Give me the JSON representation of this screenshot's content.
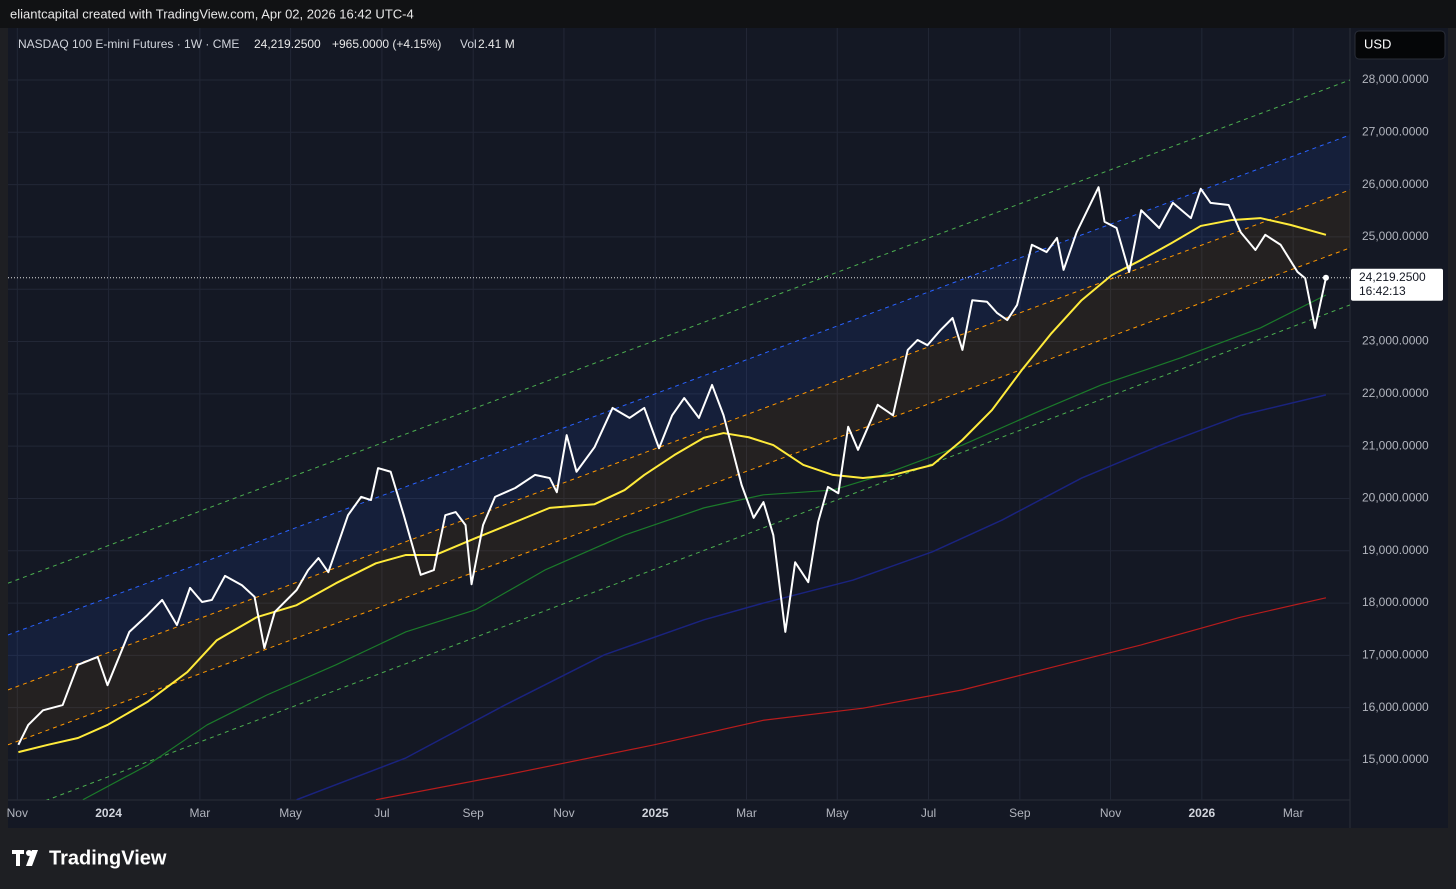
{
  "header": {
    "attribution": "eliantcapital created with TradingView.com, Apr 02, 2026 16:42 UTC-4",
    "brand": "TradingView"
  },
  "chart_data": {
    "type": "line",
    "title": "NASDAQ 100 E-mini Futures · 1W · CME",
    "last_price": {
      "value": 24219.25,
      "label": "24,219.2500"
    },
    "change": "+965.0000 (+4.15%)",
    "volume_label": "Vol",
    "volume": "2.41 M",
    "clock": "16:42:13",
    "currency": "USD",
    "grid": true,
    "xlim": [
      2023.816,
      2026.271
    ],
    "xticks": [
      {
        "value": 2023.833,
        "label": "Nov"
      },
      {
        "value": 2024.0,
        "label": "2024"
      },
      {
        "value": 2024.167,
        "label": "Mar"
      },
      {
        "value": 2024.333,
        "label": "May"
      },
      {
        "value": 2024.5,
        "label": "Jul"
      },
      {
        "value": 2024.667,
        "label": "Sep"
      },
      {
        "value": 2024.833,
        "label": "Nov"
      },
      {
        "value": 2025.0,
        "label": "2025"
      },
      {
        "value": 2025.167,
        "label": "Mar"
      },
      {
        "value": 2025.333,
        "label": "May"
      },
      {
        "value": 2025.5,
        "label": "Jul"
      },
      {
        "value": 2025.667,
        "label": "Sep"
      },
      {
        "value": 2025.833,
        "label": "Nov"
      },
      {
        "value": 2026.0,
        "label": "2026"
      },
      {
        "value": 2026.167,
        "label": "Mar"
      }
    ],
    "ylim": [
      14235,
      28994
    ],
    "yticks": [
      {
        "value": 15000,
        "label": "15,000.0000"
      },
      {
        "value": 16000,
        "label": "16,000.0000"
      },
      {
        "value": 17000,
        "label": "17,000.0000"
      },
      {
        "value": 18000,
        "label": "18,000.0000"
      },
      {
        "value": 19000,
        "label": "19,000.0000"
      },
      {
        "value": 20000,
        "label": "20,000.0000"
      },
      {
        "value": 21000,
        "label": "21,000.0000"
      },
      {
        "value": 22000,
        "label": "22,000.0000"
      },
      {
        "value": 23000,
        "label": "23,000.0000"
      },
      {
        "value": 24000,
        "label": "24,000.0000"
      },
      {
        "value": 25000,
        "label": "25,000.0000"
      },
      {
        "value": 26000,
        "label": "26,000.0000"
      },
      {
        "value": 27000,
        "label": "27,000.0000"
      },
      {
        "value": 28000,
        "label": "28,000.0000"
      }
    ],
    "series": [
      {
        "color": "#4caf50",
        "dash": true,
        "width": 1,
        "x": [
          2023.816,
          2026.271
        ],
        "values": [
          18380,
          28000
        ]
      },
      {
        "color": "#2962ff",
        "dash": true,
        "width": 1,
        "fill": "rgba(41,98,255,0.10)",
        "x": [
          2023.816,
          2026.271
        ],
        "values": [
          17390,
          26950
        ]
      },
      {
        "color": "#ff9800",
        "dash": true,
        "width": 1,
        "fill": "rgba(255,152,0,0.07)",
        "x": [
          2023.816,
          2026.271
        ],
        "values": [
          16340,
          25900
        ]
      },
      {
        "color": "#ff9800",
        "dash": true,
        "width": 1,
        "x": [
          2023.816,
          2026.271
        ],
        "values": [
          15290,
          24790
        ]
      },
      {
        "color": "#4caf50",
        "dash": true,
        "width": 1,
        "x": [
          2023.816,
          2026.271
        ],
        "values": [
          13950,
          23700
        ]
      },
      {
        "color": "#b71c1c",
        "width": 1.2,
        "x": [
          2024.489,
          2024.725,
          2024.998,
          2025.198,
          2025.38,
          2025.562,
          2025.744,
          2025.889,
          2026.071,
          2026.227
        ],
        "values": [
          14240,
          14710,
          15290,
          15760,
          15990,
          16340,
          16820,
          17200,
          17730,
          18100
        ]
      },
      {
        "color": "#1a237e",
        "width": 1.5,
        "x": [
          2024.344,
          2024.544,
          2024.725,
          2024.907,
          2025.089,
          2025.198,
          2025.362,
          2025.507,
          2025.635,
          2025.78,
          2025.925,
          2026.071,
          2026.227
        ],
        "values": [
          14240,
          15040,
          16050,
          17010,
          17680,
          18000,
          18440,
          18980,
          19590,
          20390,
          21020,
          21590,
          21980
        ]
      },
      {
        "color": "#1b7a2a",
        "width": 1.2,
        "x": [
          2023.953,
          2024.071,
          2024.18,
          2024.289,
          2024.416,
          2024.544,
          2024.671,
          2024.798,
          2024.944,
          2025.089,
          2025.198,
          2025.325,
          2025.416,
          2025.562,
          2025.707,
          2025.816,
          2025.962,
          2026.107,
          2026.227
        ],
        "values": [
          14240,
          14900,
          15670,
          16240,
          16820,
          17450,
          17870,
          18630,
          19300,
          19820,
          20070,
          20160,
          20450,
          21020,
          21690,
          22170,
          22690,
          23260,
          23890
        ]
      },
      {
        "color": "#ffeb3b",
        "width": 2,
        "x": [
          2023.835,
          2023.889,
          2023.944,
          2023.998,
          2024.071,
          2024.144,
          2024.198,
          2024.271,
          2024.344,
          2024.416,
          2024.489,
          2024.544,
          2024.598,
          2024.671,
          2024.744,
          2024.807,
          2024.889,
          2024.944,
          2024.98,
          2025.035,
          2025.089,
          2025.125,
          2025.171,
          2025.216,
          2025.271,
          2025.325,
          2025.38,
          2025.435,
          2025.507,
          2025.562,
          2025.616,
          2025.671,
          2025.725,
          2025.78,
          2025.835,
          2025.889,
          2025.944,
          2025.998,
          2026.053,
          2026.107,
          2026.162,
          2026.227
        ],
        "values": [
          15150,
          15290,
          15420,
          15670,
          16110,
          16680,
          17290,
          17730,
          17960,
          18380,
          18760,
          18920,
          18920,
          19240,
          19550,
          19820,
          19890,
          20160,
          20450,
          20830,
          21160,
          21250,
          21170,
          21020,
          20640,
          20450,
          20390,
          20450,
          20640,
          21120,
          21690,
          22460,
          23160,
          23790,
          24270,
          24560,
          24880,
          25210,
          25320,
          25360,
          25230,
          25040
        ]
      },
      {
        "color": "#ffffff",
        "width": 2,
        "x": [
          2023.835,
          2023.853,
          2023.88,
          2023.916,
          2023.944,
          2023.98,
          2023.998,
          2024.038,
          2024.071,
          2024.098,
          2024.125,
          2024.149,
          2024.171,
          2024.189,
          2024.213,
          2024.244,
          2024.267,
          2024.285,
          2024.304,
          2024.344,
          2024.365,
          2024.384,
          2024.402,
          2024.438,
          2024.462,
          2024.48,
          2024.493,
          2024.516,
          2024.54,
          2024.571,
          2024.595,
          2024.616,
          2024.635,
          2024.653,
          2024.664,
          2024.685,
          2024.707,
          2024.744,
          2024.78,
          2024.807,
          2024.82,
          2024.838,
          2024.856,
          2024.889,
          2024.922,
          2024.953,
          2024.98,
          2025.007,
          2025.031,
          2025.053,
          2025.08,
          2025.104,
          2025.125,
          2025.158,
          2025.18,
          2025.198,
          2025.216,
          2025.238,
          2025.256,
          2025.28,
          2025.298,
          2025.316,
          2025.335,
          2025.353,
          2025.371,
          2025.407,
          2025.435,
          2025.462,
          2025.48,
          2025.498,
          2025.522,
          2025.544,
          2025.562,
          2025.58,
          2025.607,
          2025.625,
          2025.644,
          2025.662,
          2025.689,
          2025.716,
          2025.735,
          2025.747,
          2025.771,
          2025.811,
          2025.822,
          2025.844,
          2025.867,
          2025.889,
          2025.922,
          2025.947,
          2025.98,
          2025.998,
          2026.016,
          2026.049,
          2026.071,
          2026.098,
          2026.116,
          2026.144,
          2026.175,
          2026.189,
          2026.207,
          2026.227
        ],
        "values": [
          15290,
          15670,
          15950,
          16050,
          16820,
          16970,
          16430,
          17450,
          17770,
          18060,
          17580,
          18290,
          18020,
          18060,
          18520,
          18340,
          18120,
          17140,
          17830,
          18250,
          18630,
          18860,
          18590,
          19680,
          20030,
          19970,
          20580,
          20510,
          19680,
          18540,
          18630,
          19680,
          19740,
          19490,
          18360,
          19490,
          20030,
          20200,
          20450,
          20390,
          20120,
          21210,
          20510,
          20980,
          21730,
          21540,
          21730,
          20960,
          21590,
          21920,
          21540,
          22170,
          21590,
          20260,
          19630,
          19930,
          19300,
          17450,
          18780,
          18400,
          19550,
          20220,
          20100,
          21370,
          20930,
          21790,
          21590,
          22840,
          23030,
          22930,
          23220,
          23450,
          22840,
          23790,
          23760,
          23550,
          23410,
          23700,
          24850,
          24710,
          24980,
          24370,
          25090,
          25950,
          25290,
          25170,
          24330,
          25510,
          25170,
          25650,
          25360,
          25920,
          25650,
          25610,
          25090,
          24750,
          25040,
          24850,
          24330,
          24210,
          23260,
          24219.25
        ]
      }
    ]
  }
}
